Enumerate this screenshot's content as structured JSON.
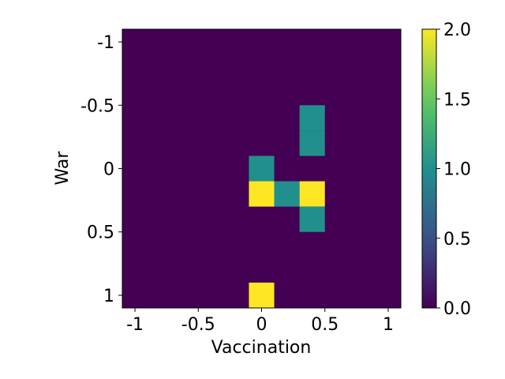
{
  "chart_data": {
    "type": "heatmap",
    "title": "",
    "xlabel": "Vaccination",
    "ylabel": "War",
    "x_ticks": [
      "-1",
      "-0.5",
      "0",
      "0.5",
      "1"
    ],
    "y_ticks": [
      "-1",
      "-0.5",
      "0",
      "0.5",
      "1"
    ],
    "x_range": [
      -1.1,
      1.1
    ],
    "y_range": [
      -1.1,
      1.1
    ],
    "cell_size": 0.2,
    "cells": [
      {
        "x": 0.0,
        "y": 0.0,
        "value": 1
      },
      {
        "x": 0.0,
        "y": 0.2,
        "value": 2
      },
      {
        "x": 0.2,
        "y": 0.2,
        "value": 1
      },
      {
        "x": 0.4,
        "y": 0.2,
        "value": 2
      },
      {
        "x": 0.4,
        "y": -0.4,
        "value": 1
      },
      {
        "x": 0.4,
        "y": -0.2,
        "value": 1
      },
      {
        "x": 0.4,
        "y": 0.4,
        "value": 1
      },
      {
        "x": 0.0,
        "y": 1.0,
        "value": 2
      }
    ],
    "background_value": 0,
    "colorbar": {
      "min": 0,
      "max": 2,
      "ticks": [
        "0.0",
        "0.5",
        "1.0",
        "1.5",
        "2.0"
      ],
      "colormap": "viridis"
    },
    "colors": {
      "low": "#440154",
      "mid": "#21908d",
      "high": "#fde725"
    },
    "grid": false
  }
}
